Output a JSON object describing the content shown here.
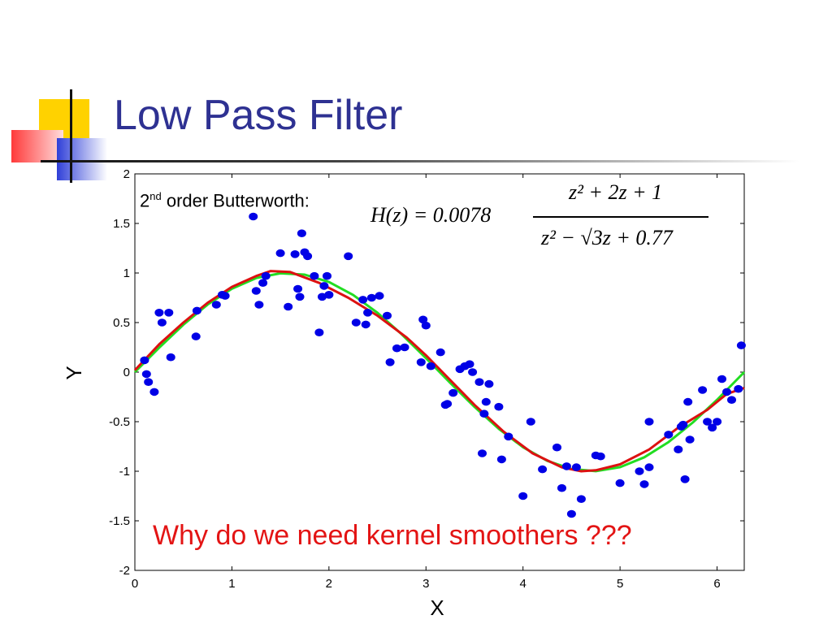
{
  "slide": {
    "title": "Low Pass Filter",
    "note_prefix": "2",
    "note_sup": "nd",
    "note_rest": " order Butterworth:",
    "formula_lhs": "H(z) = 0.0078",
    "formula_num": "z² + 2z + 1",
    "formula_den": "z² − √3z + 0.77",
    "callout": "Why do we need kernel smoothers ???"
  },
  "colors": {
    "title": "#2e3192",
    "points": "#0000e6",
    "true_curve": "#22dd22",
    "filtered_curve": "#dd1111",
    "callout": "#e31414"
  },
  "chart_data": {
    "type": "scatter",
    "xlabel": "X",
    "ylabel": "Y",
    "xlim": [
      0,
      6.28
    ],
    "ylim": [
      -2,
      2
    ],
    "xticks": [
      0,
      1,
      2,
      3,
      4,
      5,
      6
    ],
    "yticks": [
      -2,
      -1.5,
      -1,
      -0.5,
      0,
      0.5,
      1,
      1.5,
      2
    ],
    "series": [
      {
        "kind": "points",
        "x": [
          0.1,
          0.12,
          0.14,
          0.2,
          0.25,
          0.28,
          0.35,
          0.37,
          0.63,
          0.64,
          0.84,
          0.9,
          0.93,
          1.22,
          1.25,
          1.28,
          1.32,
          1.35,
          1.5,
          1.58,
          1.65,
          1.68,
          1.7,
          1.72,
          1.75,
          1.78,
          1.85,
          1.9,
          1.93,
          1.95,
          1.98,
          2.0,
          2.2,
          2.28,
          2.35,
          2.38,
          2.4,
          2.44,
          2.52,
          2.6,
          2.63,
          2.7,
          2.78,
          2.95,
          2.97,
          3.0,
          3.05,
          3.15,
          3.2,
          3.22,
          3.28,
          3.35,
          3.4,
          3.45,
          3.48,
          3.55,
          3.58,
          3.6,
          3.62,
          3.65,
          3.75,
          3.78,
          3.85,
          4.0,
          4.08,
          4.2,
          4.35,
          4.4,
          4.45,
          4.5,
          4.55,
          4.6,
          4.75,
          4.8,
          5.0,
          5.2,
          5.25,
          5.3,
          5.3,
          5.5,
          5.6,
          5.63,
          5.65,
          5.67,
          5.7,
          5.72,
          5.85,
          5.9,
          5.95,
          6.0,
          6.05,
          6.1,
          6.15,
          6.22,
          6.25
        ],
        "y": [
          0.12,
          -0.02,
          -0.1,
          -0.2,
          0.6,
          0.5,
          0.6,
          0.15,
          0.36,
          0.62,
          0.68,
          0.78,
          0.77,
          1.57,
          0.82,
          0.68,
          0.9,
          0.97,
          1.2,
          0.66,
          1.19,
          0.84,
          0.76,
          1.4,
          1.21,
          1.17,
          0.97,
          0.4,
          0.76,
          0.87,
          0.97,
          0.78,
          1.17,
          0.5,
          0.73,
          0.48,
          0.6,
          0.75,
          0.77,
          0.57,
          0.1,
          0.24,
          0.25,
          0.1,
          0.53,
          0.47,
          0.06,
          0.2,
          -0.33,
          -0.32,
          -0.21,
          0.03,
          0.06,
          0.08,
          0.0,
          -0.1,
          -0.82,
          -0.42,
          -0.3,
          -0.12,
          -0.35,
          -0.88,
          -0.65,
          -1.25,
          -0.5,
          -0.98,
          -0.76,
          -1.17,
          -0.95,
          -1.43,
          -0.96,
          -1.28,
          -0.84,
          -0.85,
          -1.12,
          -1.0,
          -1.13,
          -0.5,
          -0.96,
          -0.63,
          -0.78,
          -0.55,
          -0.53,
          -1.08,
          -0.3,
          -0.68,
          -0.18,
          -0.5,
          -0.56,
          -0.5,
          -0.07,
          -0.2,
          -0.28,
          -0.17,
          0.27
        ]
      },
      {
        "kind": "line",
        "role": "true_curve",
        "x": [
          0,
          0.25,
          0.5,
          0.75,
          1,
          1.25,
          1.5,
          1.75,
          2,
          2.25,
          2.5,
          2.75,
          3,
          3.25,
          3.5,
          3.75,
          4,
          4.25,
          4.5,
          4.75,
          5,
          5.25,
          5.5,
          5.75,
          6,
          6.28
        ],
        "y": [
          0,
          0.247,
          0.479,
          0.682,
          0.841,
          0.949,
          0.997,
          0.984,
          0.909,
          0.778,
          0.598,
          0.382,
          0.141,
          -0.108,
          -0.351,
          -0.572,
          -0.757,
          -0.895,
          -0.978,
          -0.999,
          -0.959,
          -0.859,
          -0.706,
          -0.508,
          -0.279,
          0
        ]
      },
      {
        "kind": "line",
        "role": "filtered_curve",
        "x": [
          0,
          0.25,
          0.5,
          0.75,
          1,
          1.25,
          1.4,
          1.6,
          1.9,
          2.2,
          2.5,
          2.8,
          3.0,
          3.25,
          3.5,
          3.8,
          4.1,
          4.4,
          4.6,
          4.75,
          5.0,
          5.3,
          5.6,
          5.9,
          6.1,
          6.28
        ],
        "y": [
          0.02,
          0.28,
          0.5,
          0.7,
          0.86,
          0.97,
          1.02,
          1.01,
          0.9,
          0.75,
          0.57,
          0.35,
          0.17,
          -0.08,
          -0.33,
          -0.6,
          -0.82,
          -0.96,
          -1.0,
          -0.99,
          -0.93,
          -0.78,
          -0.56,
          -0.38,
          -0.22,
          -0.16
        ]
      }
    ]
  }
}
